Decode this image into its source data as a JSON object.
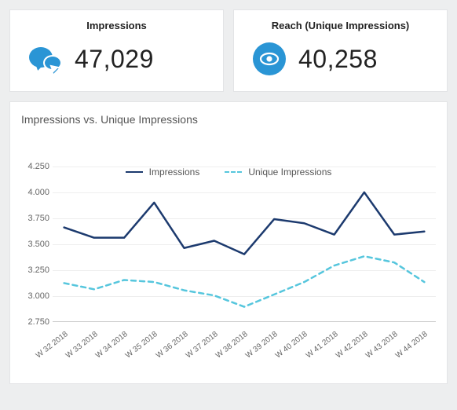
{
  "cards": {
    "impressions": {
      "title": "Impressions",
      "value": "47,029",
      "icon": "chat-icon",
      "icon_color": "#2a95d5"
    },
    "reach": {
      "title": "Reach (Unique Impressions)",
      "value": "40,258",
      "icon": "eye-icon",
      "icon_color": "#2a95d5"
    }
  },
  "chart": {
    "type": "line",
    "title": "Impressions vs. Unique Impressions",
    "background_color": "#ffffff",
    "grid_color": "#eeeeee",
    "axis_color": "#cccccc",
    "label_color": "#666666",
    "label_fontsize": 11,
    "x_label_fontsize": 10,
    "x_label_rotation_deg": -38,
    "ylim": [
      2750,
      4250
    ],
    "ytick_step": 250,
    "y_ticks": [
      "4.250",
      "4.000",
      "3.750",
      "3.500",
      "3.250",
      "3.000",
      "2.750"
    ],
    "categories": [
      "W 32 2018",
      "W 33 2018",
      "W 34 2018",
      "W 35 2018",
      "W 36 2018",
      "W 37 2018",
      "W 38 2018",
      "W 39 2018",
      "W 40 2018",
      "W 41 2018",
      "W 42 2018",
      "W 43 2018",
      "W 44 2018"
    ],
    "series": [
      {
        "name": "Impressions",
        "color": "#1c3a6e",
        "line_width": 2.5,
        "dash": "none",
        "values": [
          3660,
          3560,
          3560,
          3900,
          3460,
          3530,
          3400,
          3740,
          3700,
          3590,
          4000,
          3590,
          3620
        ]
      },
      {
        "name": "Unique Impressions",
        "color": "#56c6dd",
        "line_width": 2.5,
        "dash": "6,5",
        "values": [
          3120,
          3060,
          3150,
          3130,
          3050,
          3000,
          2890,
          3010,
          3130,
          3290,
          3380,
          3320,
          3130
        ]
      }
    ],
    "legend": {
      "position": "bottom-center",
      "items": [
        {
          "label": "Impressions",
          "style": "solid",
          "color": "#1c3a6e"
        },
        {
          "label": "Unique Impressions",
          "style": "dashed",
          "color": "#56c6dd"
        }
      ]
    }
  }
}
